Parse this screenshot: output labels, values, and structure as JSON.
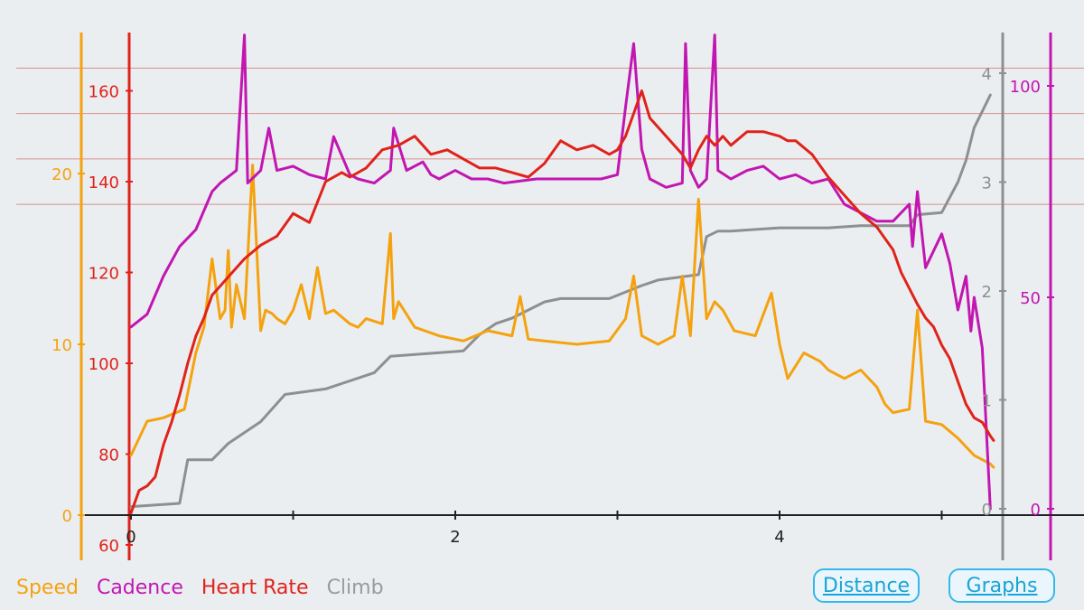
{
  "legend": {
    "speed": "Speed",
    "cadence": "Cadence",
    "heart_rate": "Heart Rate",
    "climb": "Climb"
  },
  "buttons": {
    "distance": "Distance",
    "graphs": "Graphs"
  },
  "colors": {
    "speed": "#f5a20f",
    "cadence": "#c216b0",
    "heart_rate": "#e0231a",
    "climb": "#8f8f8f",
    "hr_gridline": "#d98f8b",
    "button": "#1aa3d8",
    "background": "#eaeef1"
  },
  "chart_data": {
    "type": "line",
    "x_axis": {
      "label": "",
      "range": [
        0,
        5.55
      ],
      "ticks": [
        0,
        2,
        4
      ]
    },
    "axes": {
      "speed": {
        "range": [
          -2.7,
          28.5
        ],
        "ticks": [
          0,
          10,
          20
        ]
      },
      "heart_rate": {
        "range": [
          60,
          170
        ],
        "ticks": [
          60,
          80,
          100,
          120,
          140,
          160
        ]
      },
      "climb": {
        "range": [
          0,
          4.2
        ],
        "ticks": [
          0,
          1,
          2,
          3,
          4
        ]
      },
      "cadence": {
        "range": [
          0,
          116
        ],
        "ticks": [
          0,
          50,
          100
        ]
      }
    },
    "grid": "horizontal lines at heart rate 135, 145, 155, 165",
    "series": [
      {
        "name": "Speed",
        "axis": "speed",
        "x": [
          0,
          0.1,
          0.2,
          0.33,
          0.4,
          0.45,
          0.5,
          0.55,
          0.58,
          0.6,
          0.62,
          0.65,
          0.7,
          0.75,
          0.8,
          0.83,
          0.87,
          0.9,
          0.95,
          1.0,
          1.05,
          1.1,
          1.15,
          1.2,
          1.25,
          1.35,
          1.4,
          1.45,
          1.55,
          1.6,
          1.62,
          1.65,
          1.75,
          1.9,
          2.05,
          2.2,
          2.35,
          2.4,
          2.45,
          2.55,
          2.75,
          2.95,
          3.05,
          3.1,
          3.15,
          3.25,
          3.35,
          3.4,
          3.45,
          3.5,
          3.55,
          3.6,
          3.65,
          3.72,
          3.85,
          3.95,
          4.0,
          4.05,
          4.15,
          4.25,
          4.3,
          4.4,
          4.5,
          4.6,
          4.65,
          4.7,
          4.8,
          4.85,
          4.9,
          5.0,
          5.1,
          5.2,
          5.3,
          5.32
        ],
        "values": [
          3.5,
          5.5,
          5.7,
          6.2,
          9.5,
          11.0,
          15.0,
          11.5,
          12.0,
          15.5,
          11.0,
          13.5,
          11.5,
          20.5,
          10.8,
          12.0,
          11.8,
          11.5,
          11.2,
          12.0,
          13.5,
          11.5,
          14.5,
          11.8,
          12.0,
          11.2,
          11.0,
          11.5,
          11.2,
          16.5,
          11.5,
          12.5,
          11.0,
          10.5,
          10.2,
          10.8,
          10.5,
          12.8,
          10.3,
          10.2,
          10.0,
          10.2,
          11.5,
          14.0,
          10.5,
          10.0,
          10.5,
          14.0,
          10.5,
          18.5,
          11.5,
          12.5,
          12.0,
          10.8,
          10.5,
          13.0,
          10.0,
          8.0,
          9.5,
          9.0,
          8.5,
          8.0,
          8.5,
          7.5,
          6.5,
          6.0,
          6.2,
          12.0,
          5.5,
          5.3,
          4.5,
          3.5,
          3.0,
          2.8
        ]
      },
      {
        "name": "Cadence",
        "axis": "cadence",
        "x": [
          0,
          0.1,
          0.2,
          0.3,
          0.4,
          0.5,
          0.55,
          0.65,
          0.7,
          0.72,
          0.8,
          0.85,
          0.9,
          1.0,
          1.1,
          1.2,
          1.25,
          1.35,
          1.4,
          1.5,
          1.6,
          1.62,
          1.7,
          1.8,
          1.85,
          1.9,
          2.0,
          2.1,
          2.2,
          2.3,
          2.5,
          2.7,
          2.9,
          3.0,
          3.05,
          3.1,
          3.15,
          3.2,
          3.3,
          3.4,
          3.42,
          3.45,
          3.5,
          3.55,
          3.6,
          3.62,
          3.7,
          3.8,
          3.9,
          4.0,
          4.1,
          4.2,
          4.3,
          4.4,
          4.5,
          4.6,
          4.7,
          4.8,
          4.82,
          4.85,
          4.9,
          5.0,
          5.05,
          5.1,
          5.15,
          5.18,
          5.2,
          5.25,
          5.3
        ],
        "values": [
          43,
          46,
          55,
          62,
          66,
          75,
          77,
          80,
          112,
          77,
          80,
          90,
          80,
          81,
          79,
          78,
          88,
          79,
          78,
          77,
          80,
          90,
          80,
          82,
          79,
          78,
          80,
          78,
          78,
          77,
          78,
          78,
          78,
          79,
          95,
          110,
          85,
          78,
          76,
          77,
          110,
          80,
          76,
          78,
          112,
          80,
          78,
          80,
          81,
          78,
          79,
          77,
          78,
          72,
          70,
          68,
          68,
          72,
          62,
          75,
          57,
          65,
          58,
          47,
          55,
          42,
          50,
          38,
          0
        ]
      },
      {
        "name": "Heart Rate",
        "axis": "heart_rate",
        "x": [
          0,
          0.05,
          0.1,
          0.15,
          0.2,
          0.25,
          0.3,
          0.35,
          0.4,
          0.45,
          0.5,
          0.55,
          0.6,
          0.7,
          0.8,
          0.9,
          1.0,
          1.05,
          1.1,
          1.2,
          1.3,
          1.35,
          1.45,
          1.55,
          1.65,
          1.75,
          1.85,
          1.95,
          2.05,
          2.15,
          2.25,
          2.35,
          2.45,
          2.55,
          2.65,
          2.75,
          2.85,
          2.95,
          3.0,
          3.05,
          3.1,
          3.15,
          3.2,
          3.3,
          3.4,
          3.45,
          3.5,
          3.55,
          3.6,
          3.65,
          3.7,
          3.8,
          3.9,
          4.0,
          4.05,
          4.1,
          4.2,
          4.3,
          4.4,
          4.5,
          4.6,
          4.7,
          4.75,
          4.85,
          4.9,
          4.95,
          5.0,
          5.05,
          5.1,
          5.15,
          5.2,
          5.25,
          5.3,
          5.32
        ],
        "values": [
          67,
          72,
          73,
          75,
          82,
          87,
          93,
          100,
          106,
          110,
          115,
          117,
          119,
          123,
          126,
          128,
          133,
          132,
          131,
          140,
          142,
          141,
          143,
          147,
          148,
          150,
          146,
          147,
          145,
          143,
          143,
          142,
          141,
          144,
          149,
          147,
          148,
          146,
          147,
          150,
          155,
          160,
          154,
          150,
          146,
          143,
          147,
          150,
          148,
          150,
          148,
          151,
          151,
          150,
          149,
          149,
          146,
          141,
          137,
          133,
          130,
          125,
          120,
          113,
          110,
          108,
          104,
          101,
          96,
          91,
          88,
          87,
          84,
          83
        ]
      },
      {
        "name": "Climb",
        "axis": "climb",
        "x": [
          0,
          0.3,
          0.35,
          0.5,
          0.6,
          0.8,
          0.95,
          1.2,
          1.5,
          1.6,
          2.05,
          2.15,
          2.25,
          2.35,
          2.55,
          2.65,
          2.95,
          3.15,
          3.25,
          3.5,
          3.55,
          3.62,
          3.7,
          3.8,
          4.0,
          4.3,
          4.5,
          4.8,
          4.85,
          5.0,
          5.1,
          5.15,
          5.2,
          5.25,
          5.3
        ],
        "values": [
          0.02,
          0.05,
          0.45,
          0.45,
          0.6,
          0.8,
          1.05,
          1.1,
          1.25,
          1.4,
          1.45,
          1.6,
          1.7,
          1.75,
          1.9,
          1.93,
          1.93,
          2.05,
          2.1,
          2.15,
          2.5,
          2.55,
          2.55,
          2.56,
          2.58,
          2.58,
          2.6,
          2.6,
          2.7,
          2.72,
          3.0,
          3.2,
          3.5,
          3.65,
          3.8
        ]
      }
    ]
  }
}
